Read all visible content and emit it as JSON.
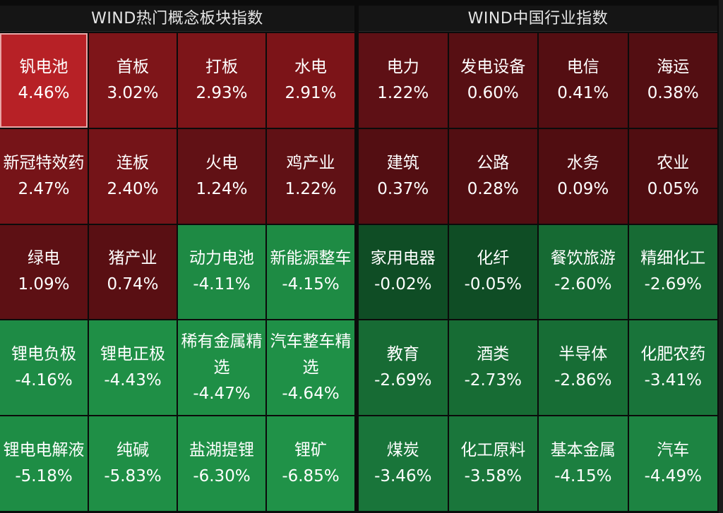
{
  "panels": [
    {
      "title": "WIND热门概念板块指数",
      "tiles": [
        {
          "name": "钒电池",
          "pct": "4.46%",
          "color": "#b72126"
        },
        {
          "name": "首板",
          "pct": "3.02%",
          "color": "#7e1519"
        },
        {
          "name": "打板",
          "pct": "2.93%",
          "color": "#7d1519"
        },
        {
          "name": "水电",
          "pct": "2.91%",
          "color": "#7c1418"
        },
        {
          "name": "新冠特效药",
          "pct": "2.47%",
          "color": "#761418"
        },
        {
          "name": "连板",
          "pct": "2.40%",
          "color": "#741418"
        },
        {
          "name": "火电",
          "pct": "1.24%",
          "color": "#611115"
        },
        {
          "name": "鸡产业",
          "pct": "1.22%",
          "color": "#601115"
        },
        {
          "name": "绿电",
          "pct": "1.09%",
          "color": "#5d1014"
        },
        {
          "name": "猪产业",
          "pct": "0.74%",
          "color": "#590f13"
        },
        {
          "name": "动力电池",
          "pct": "-4.11%",
          "color": "#1e8a44"
        },
        {
          "name": "新能源整车",
          "pct": "-4.15%",
          "color": "#1e8b44"
        },
        {
          "name": "锂电负极",
          "pct": "-4.16%",
          "color": "#1e8b45"
        },
        {
          "name": "锂电正极",
          "pct": "-4.43%",
          "color": "#1f8f46"
        },
        {
          "name": "稀有金属精选",
          "pct": "-4.47%",
          "color": "#1f8f46"
        },
        {
          "name": "汽车整车精选",
          "pct": "-4.64%",
          "color": "#1f9047"
        },
        {
          "name": "锂电电解液",
          "pct": "-5.18%",
          "color": "#1e8d45"
        },
        {
          "name": "纯碱",
          "pct": "-5.83%",
          "color": "#1f8f46"
        },
        {
          "name": "盐湖提锂",
          "pct": "-6.30%",
          "color": "#1f9047"
        },
        {
          "name": "锂矿",
          "pct": "-6.85%",
          "color": "#209248"
        }
      ]
    },
    {
      "title": "WIND中国行业指数",
      "tiles": [
        {
          "name": "电力",
          "pct": "1.22%",
          "color": "#5e1015"
        },
        {
          "name": "发电设备",
          "pct": "0.60%",
          "color": "#570f13"
        },
        {
          "name": "电信",
          "pct": "0.41%",
          "color": "#540e12"
        },
        {
          "name": "海运",
          "pct": "0.38%",
          "color": "#530e12"
        },
        {
          "name": "建筑",
          "pct": "0.37%",
          "color": "#530e12"
        },
        {
          "name": "公路",
          "pct": "0.28%",
          "color": "#520e12"
        },
        {
          "name": "水务",
          "pct": "0.09%",
          "color": "#500d11"
        },
        {
          "name": "农业",
          "pct": "0.05%",
          "color": "#500d11"
        },
        {
          "name": "家用电器",
          "pct": "-0.02%",
          "color": "#0f4d25"
        },
        {
          "name": "化纤",
          "pct": "-0.05%",
          "color": "#0f4d25"
        },
        {
          "name": "餐饮旅游",
          "pct": "-2.60%",
          "color": "#166a33"
        },
        {
          "name": "精细化工",
          "pct": "-2.69%",
          "color": "#176b34"
        },
        {
          "name": "教育",
          "pct": "-2.69%",
          "color": "#176b34"
        },
        {
          "name": "酒类",
          "pct": "-2.73%",
          "color": "#176c34"
        },
        {
          "name": "半导体",
          "pct": "-2.86%",
          "color": "#176d35"
        },
        {
          "name": "化肥农药",
          "pct": "-3.41%",
          "color": "#19743a"
        },
        {
          "name": "煤炭",
          "pct": "-3.46%",
          "color": "#19753a"
        },
        {
          "name": "化工原料",
          "pct": "-3.58%",
          "color": "#1a763b"
        },
        {
          "name": "基本金属",
          "pct": "-4.15%",
          "color": "#1c7f40"
        },
        {
          "name": "汽车",
          "pct": "-4.49%",
          "color": "#1d8442"
        }
      ]
    }
  ]
}
